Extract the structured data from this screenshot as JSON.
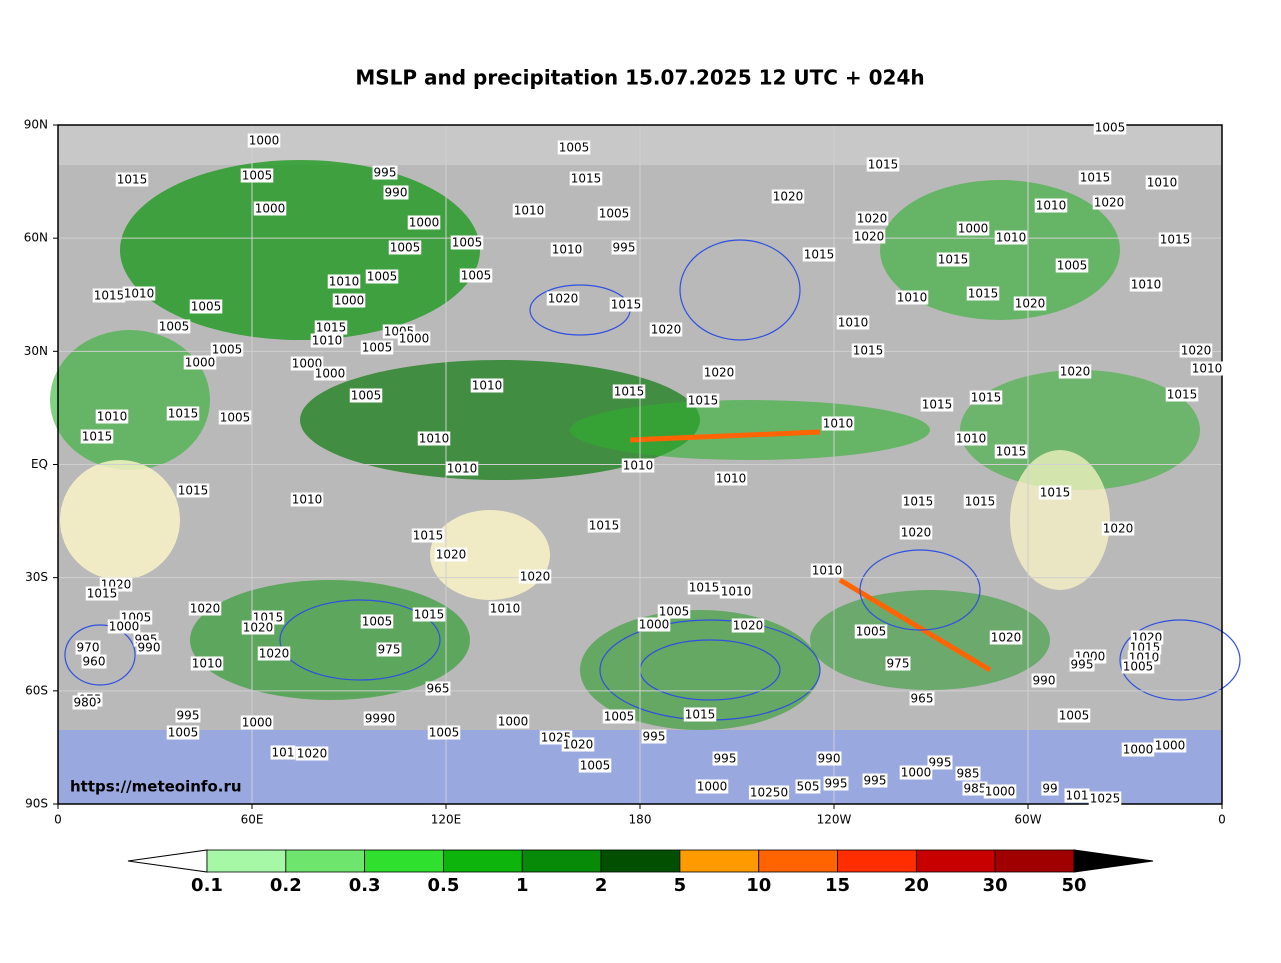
{
  "title": "MSLP and precipitation 15.07.2025 12 UTC + 024h",
  "map": {
    "lon_labels": [
      "0",
      "60E",
      "120E",
      "180",
      "120W",
      "60W",
      "0"
    ],
    "lat_labels": [
      "90N",
      "60N",
      "30N",
      "EQ",
      "30S",
      "60S",
      "90S"
    ],
    "credit": "https://meteoinfo.ru",
    "isobar_labels": [
      "1000",
      "1005",
      "1005",
      "1015",
      "1005",
      "995",
      "990",
      "1015",
      "1015",
      "1015",
      "1010",
      "1000",
      "1010",
      "1020",
      "1005",
      "1020",
      "1010",
      "1000",
      "1020",
      "995",
      "1010",
      "1005",
      "1005",
      "1000",
      "1010",
      "1015",
      "1020",
      "1015",
      "1015",
      "1005",
      "1010",
      "1005",
      "1005",
      "1015",
      "1010",
      "1005",
      "1000",
      "1020",
      "1015",
      "1010",
      "1015",
      "1020",
      "1010",
      "1005",
      "1015",
      "1005",
      "1000",
      "1010",
      "1020",
      "1010",
      "1005",
      "1005",
      "1015",
      "1020",
      "1000",
      "1000",
      "1000",
      "1020",
      "1020",
      "1010",
      "1010",
      "1015",
      "1015",
      "1005",
      "1015",
      "1015",
      "1015",
      "1010",
      "1015",
      "1005",
      "1010",
      "1015",
      "1010",
      "1010",
      "1015",
      "1010",
      "1010",
      "1010",
      "1015",
      "1010",
      "1015",
      "1015",
      "1015",
      "1015",
      "1015",
      "1020",
      "1020",
      "1020",
      "1020",
      "1010",
      "1020",
      "1015",
      "1015",
      "1010",
      "1020",
      "1010",
      "1015",
      "1005",
      "1015",
      "1005",
      "1005",
      "1020",
      "1000",
      "1020",
      "1005",
      "1020",
      "1020",
      "1000",
      "995",
      "990",
      "970",
      "960",
      "975",
      "1020",
      "1000",
      "1015",
      "1010",
      "1005",
      "1010",
      "975",
      "995",
      "990",
      "975",
      "980",
      "965",
      "965",
      "995",
      "1000",
      "9990",
      "1000",
      "1005",
      "1015",
      "1005",
      "1005",
      "1005",
      "1025",
      "995",
      "101",
      "1020",
      "1020",
      "1000",
      "1000",
      "1005",
      "995",
      "990",
      "995",
      "1000",
      "985",
      "995",
      "995",
      "1000",
      "10250",
      "505",
      "985",
      "1000",
      "99",
      "1025",
      "101"
    ]
  },
  "colorbar": {
    "levels": [
      0.1,
      0.2,
      0.3,
      0.5,
      1,
      2,
      5,
      10,
      15,
      20,
      30,
      50
    ],
    "colors": [
      "#a6f7a6",
      "#6ee66e",
      "#2fe02f",
      "#0cb40c",
      "#078a07",
      "#024f02",
      "#ff9a00",
      "#ff6400",
      "#ff2d00",
      "#c80000",
      "#a00000"
    ],
    "under_color": "#ffffff",
    "over_color": "#000000"
  }
}
